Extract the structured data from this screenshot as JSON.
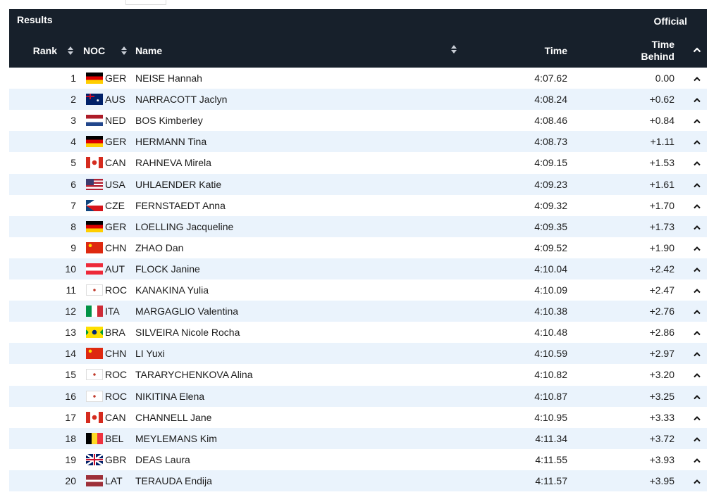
{
  "header": {
    "title": "Results",
    "status": "Official",
    "columns": [
      "Rank",
      "NOC",
      "Name",
      "Time",
      "Time Behind"
    ]
  },
  "table": {
    "rows": [
      [
        1,
        "GER",
        "NEISE Hannah",
        "4:07.62",
        "0.00"
      ],
      [
        2,
        "AUS",
        "NARRACOTT Jaclyn",
        "4:08.24",
        "+0.62"
      ],
      [
        3,
        "NED",
        "BOS Kimberley",
        "4:08.46",
        "+0.84"
      ],
      [
        4,
        "GER",
        "HERMANN Tina",
        "4:08.73",
        "+1.11"
      ],
      [
        5,
        "CAN",
        "RAHNEVA Mirela",
        "4:09.15",
        "+1.53"
      ],
      [
        6,
        "USA",
        "UHLAENDER Katie",
        "4:09.23",
        "+1.61"
      ],
      [
        7,
        "CZE",
        "FERNSTAEDT Anna",
        "4:09.32",
        "+1.70"
      ],
      [
        8,
        "GER",
        "LOELLING Jacqueline",
        "4:09.35",
        "+1.73"
      ],
      [
        9,
        "CHN",
        "ZHAO Dan",
        "4:09.52",
        "+1.90"
      ],
      [
        10,
        "AUT",
        "FLOCK Janine",
        "4:10.04",
        "+2.42"
      ],
      [
        11,
        "ROC",
        "KANAKINA Yulia",
        "4:10.09",
        "+2.47"
      ],
      [
        12,
        "ITA",
        "MARGAGLIO Valentina",
        "4:10.38",
        "+2.76"
      ],
      [
        13,
        "BRA",
        "SILVEIRA Nicole Rocha",
        "4:10.48",
        "+2.86"
      ],
      [
        14,
        "CHN",
        "LI Yuxi",
        "4:10.59",
        "+2.97"
      ],
      [
        15,
        "ROC",
        "TARARYCHENKOVA Alina",
        "4:10.82",
        "+3.20"
      ],
      [
        16,
        "ROC",
        "NIKITINA Elena",
        "4:10.87",
        "+3.25"
      ],
      [
        17,
        "CAN",
        "CHANNELL Jane",
        "4:10.95",
        "+3.33"
      ],
      [
        18,
        "BEL",
        "MEYLEMANS Kim",
        "4:11.34",
        "+3.72"
      ],
      [
        19,
        "GBR",
        "DEAS Laura",
        "4:11.55",
        "+3.93"
      ],
      [
        20,
        "LAT",
        "TERAUDA Endija",
        "4:11.57",
        "+3.95"
      ]
    ]
  }
}
